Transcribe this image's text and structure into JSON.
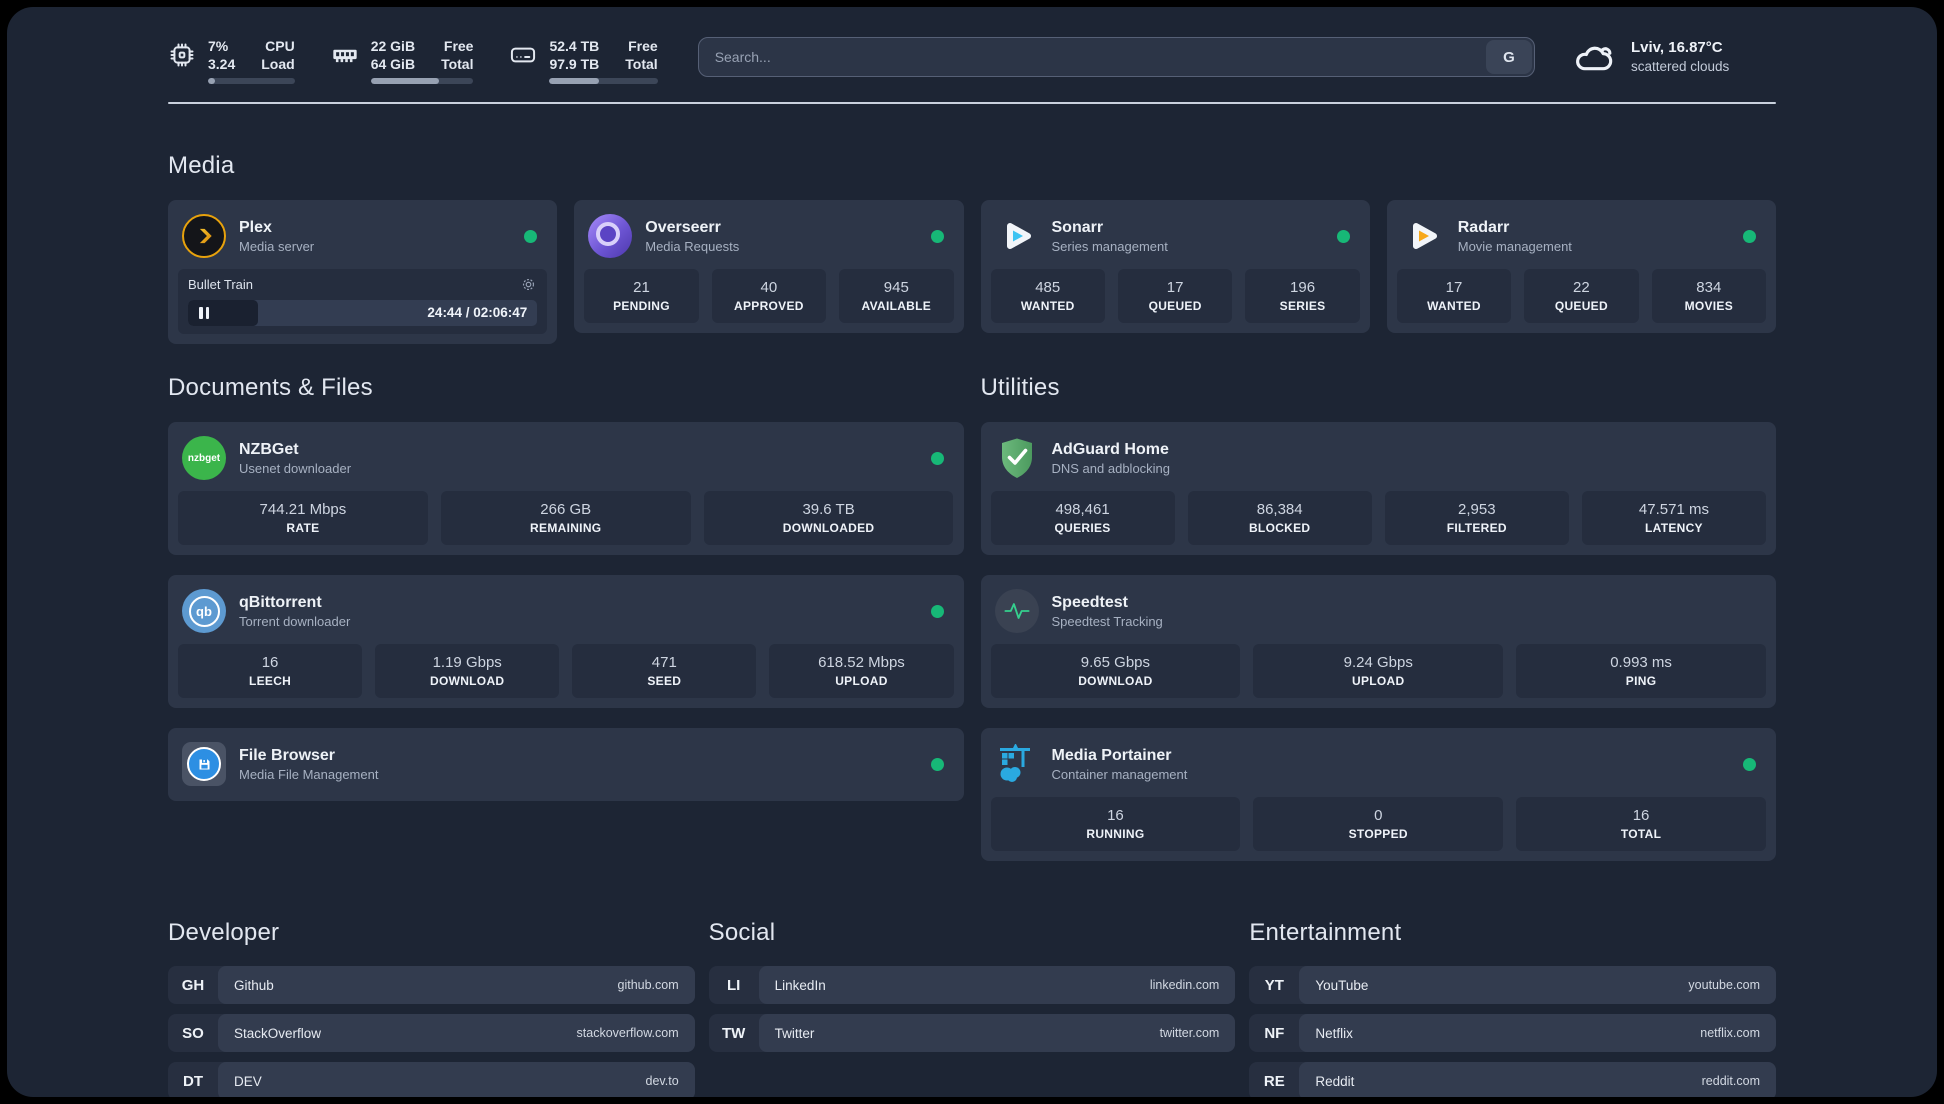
{
  "colors": {
    "status_online": "#17b877",
    "page_bg": "#1d2534",
    "card_bg": "#2d3648",
    "plex_gold": "#e8a20c",
    "sonarr_blue": "#3cc3f2",
    "radarr_orange": "#f7a81b",
    "adguard_green": "#5cad6d",
    "portainer_blue": "#2aa9e0"
  },
  "topbar": {
    "stats": [
      {
        "icon": "cpu-icon",
        "values": [
          "7%",
          "3.24"
        ],
        "labels": [
          "CPU",
          "Load"
        ],
        "progress": 8
      },
      {
        "icon": "ram-icon",
        "values": [
          "22 GiB",
          "64 GiB"
        ],
        "labels": [
          "Free",
          "Total"
        ],
        "progress": 66
      },
      {
        "icon": "disk-icon",
        "values": [
          "52.4 TB",
          "97.9 TB"
        ],
        "labels": [
          "Free",
          "Total"
        ],
        "progress": 46
      }
    ],
    "search": {
      "placeholder": "Search...",
      "engine_label": "G"
    },
    "weather": {
      "location_temp": "Lviv, 16.87°C",
      "condition": "scattered clouds"
    }
  },
  "sections": {
    "media": {
      "title": "Media",
      "apps": [
        {
          "name": "Plex",
          "desc": "Media server",
          "online": true,
          "now_playing": {
            "title": "Bullet Train",
            "time": "24:44 / 02:06:47",
            "progress": 20
          }
        },
        {
          "name": "Overseerr",
          "desc": "Media Requests",
          "online": true,
          "stats": [
            {
              "value": "21",
              "label": "PENDING"
            },
            {
              "value": "40",
              "label": "APPROVED"
            },
            {
              "value": "945",
              "label": "AVAILABLE"
            }
          ]
        },
        {
          "name": "Sonarr",
          "desc": "Series management",
          "online": true,
          "stats": [
            {
              "value": "485",
              "label": "WANTED"
            },
            {
              "value": "17",
              "label": "QUEUED"
            },
            {
              "value": "196",
              "label": "SERIES"
            }
          ]
        },
        {
          "name": "Radarr",
          "desc": "Movie management",
          "online": true,
          "stats": [
            {
              "value": "17",
              "label": "WANTED"
            },
            {
              "value": "22",
              "label": "QUEUED"
            },
            {
              "value": "834",
              "label": "MOVIES"
            }
          ]
        }
      ]
    },
    "documents": {
      "title": "Documents & Files",
      "apps": [
        {
          "name": "NZBGet",
          "desc": "Usenet downloader",
          "online": true,
          "stats": [
            {
              "value": "744.21 Mbps",
              "label": "RATE"
            },
            {
              "value": "266 GB",
              "label": "REMAINING"
            },
            {
              "value": "39.6 TB",
              "label": "DOWNLOADED"
            }
          ]
        },
        {
          "name": "qBittorrent",
          "desc": "Torrent downloader",
          "online": true,
          "stats": [
            {
              "value": "16",
              "label": "LEECH"
            },
            {
              "value": "1.19 Gbps",
              "label": "DOWNLOAD"
            },
            {
              "value": "471",
              "label": "SEED"
            },
            {
              "value": "618.52 Mbps",
              "label": "UPLOAD"
            }
          ]
        },
        {
          "name": "File Browser",
          "desc": "Media File Management",
          "online": true,
          "stats": []
        }
      ]
    },
    "utilities": {
      "title": "Utilities",
      "apps": [
        {
          "name": "AdGuard Home",
          "desc": "DNS and adblocking",
          "online": false,
          "stats": [
            {
              "value": "498,461",
              "label": "QUERIES"
            },
            {
              "value": "86,384",
              "label": "BLOCKED"
            },
            {
              "value": "2,953",
              "label": "FILTERED"
            },
            {
              "value": "47.571 ms",
              "label": "LATENCY"
            }
          ]
        },
        {
          "name": "Speedtest",
          "desc": "Speedtest Tracking",
          "online": false,
          "stats": [
            {
              "value": "9.65 Gbps",
              "label": "DOWNLOAD"
            },
            {
              "value": "9.24 Gbps",
              "label": "UPLOAD"
            },
            {
              "value": "0.993 ms",
              "label": "PING"
            }
          ]
        },
        {
          "name": "Media Portainer",
          "desc": "Container management",
          "online": true,
          "stats": [
            {
              "value": "16",
              "label": "RUNNING"
            },
            {
              "value": "0",
              "label": "STOPPED"
            },
            {
              "value": "16",
              "label": "TOTAL"
            }
          ]
        }
      ]
    },
    "bookmarks": [
      {
        "title": "Developer",
        "links": [
          {
            "abbr": "GH",
            "name": "Github",
            "url": "github.com"
          },
          {
            "abbr": "SO",
            "name": "StackOverflow",
            "url": "stackoverflow.com"
          },
          {
            "abbr": "DT",
            "name": "DEV",
            "url": "dev.to"
          }
        ]
      },
      {
        "title": "Social",
        "links": [
          {
            "abbr": "LI",
            "name": "LinkedIn",
            "url": "linkedin.com"
          },
          {
            "abbr": "TW",
            "name": "Twitter",
            "url": "twitter.com"
          }
        ]
      },
      {
        "title": "Entertainment",
        "links": [
          {
            "abbr": "YT",
            "name": "YouTube",
            "url": "youtube.com"
          },
          {
            "abbr": "NF",
            "name": "Netflix",
            "url": "netflix.com"
          },
          {
            "abbr": "RE",
            "name": "Reddit",
            "url": "reddit.com"
          }
        ]
      }
    ]
  }
}
